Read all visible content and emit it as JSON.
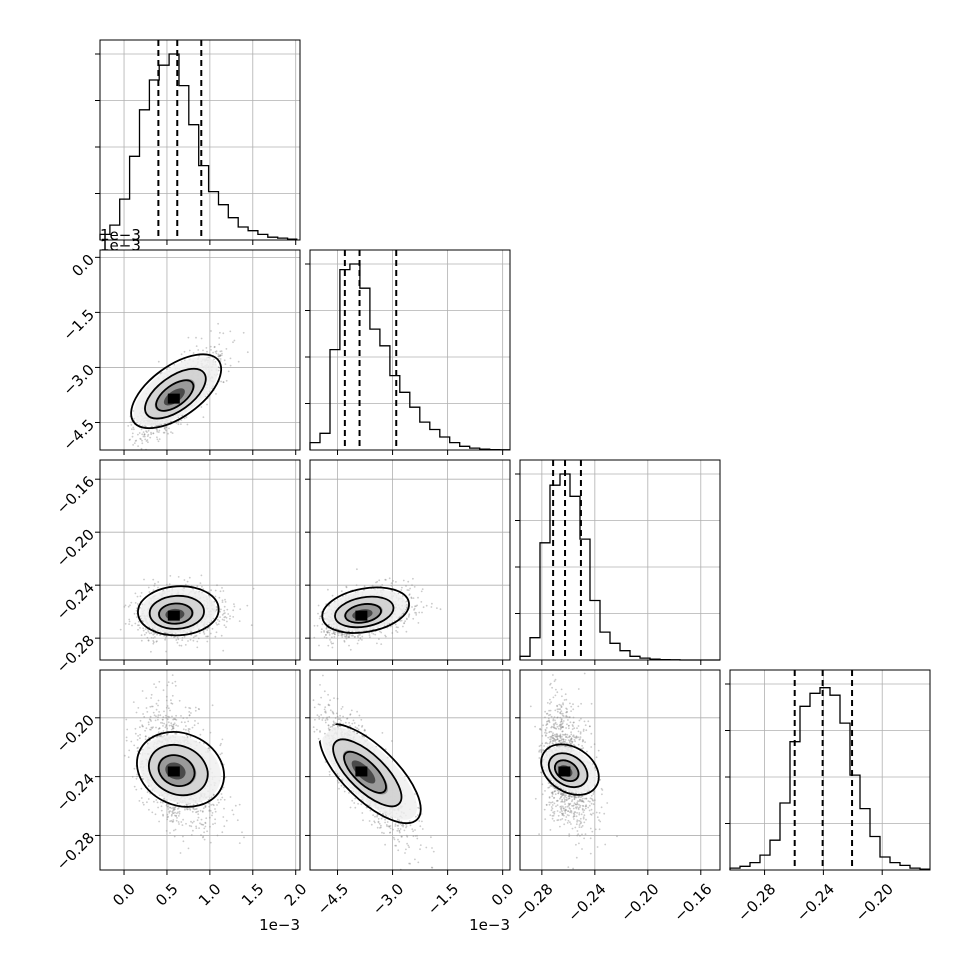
{
  "chart_data": {
    "type": "corner",
    "n_params": 4,
    "colors": {
      "frame": "#000000",
      "grid": "#b0b0b0",
      "hist": "#000000",
      "points": "#8c8c8c",
      "contour": "#000000"
    },
    "params": [
      {
        "range": [
          -0.00028,
          0.00205
        ],
        "ticks": [
          0.0,
          0.0005,
          0.001,
          0.0015,
          0.002
        ],
        "tick_labels": [
          "0.0",
          "0.5",
          "1.0",
          "1.5",
          "2.0"
        ],
        "offset_label": "1e−3",
        "quantiles": [
          0.0004,
          0.00062,
          0.0009
        ],
        "center": 0.00058,
        "spread": 0.0002
      },
      {
        "range": [
          -0.00525,
          0.0002
        ],
        "ticks": [
          -0.0045,
          -0.003,
          -0.0015,
          0.0
        ],
        "tick_labels": [
          "−4.5",
          "−3.0",
          "−1.5",
          "0.0"
        ],
        "offset_label": "1e−3",
        "quantiles": [
          -0.0043,
          -0.0039,
          -0.0029
        ],
        "center": -0.00385,
        "spread": 0.0005
      },
      {
        "range": [
          -0.2965,
          -0.1455
        ],
        "ticks": [
          -0.28,
          -0.24,
          -0.2,
          -0.16
        ],
        "tick_labels": [
          "−0.28",
          "−0.24",
          "−0.20",
          "−0.16"
        ],
        "offset_label": "",
        "quantiles": [
          -0.2715,
          -0.2625,
          -0.2505
        ],
        "center": -0.263,
        "spread": 0.008
      },
      {
        "range": [
          -0.3035,
          -0.1675
        ],
        "ticks": [
          -0.28,
          -0.24,
          -0.2
        ],
        "tick_labels": [
          "−0.28",
          "−0.24",
          "−0.20"
        ],
        "offset_label": "",
        "quantiles": [
          -0.2595,
          -0.2405,
          -0.2205
        ],
        "center": -0.2365,
        "spread": 0.018
      }
    ],
    "histograms": [
      {
        "bin_start": -0.00028,
        "bin_width": 0.000115,
        "counts": [
          0.03,
          0.08,
          0.22,
          0.45,
          0.7,
          0.86,
          0.94,
          1.0,
          0.83,
          0.62,
          0.4,
          0.26,
          0.19,
          0.12,
          0.07,
          0.05,
          0.03,
          0.015,
          0.01,
          0.005
        ]
      },
      {
        "bin_start": -0.00525,
        "bin_width": 0.000272,
        "counts": [
          0.04,
          0.09,
          0.54,
          0.97,
          1.0,
          0.87,
          0.65,
          0.56,
          0.4,
          0.31,
          0.23,
          0.15,
          0.11,
          0.07,
          0.04,
          0.02,
          0.01,
          0.005,
          0.002,
          0.001
        ]
      },
      {
        "bin_start": -0.2965,
        "bin_width": 0.00755,
        "counts": [
          0.02,
          0.12,
          0.63,
          0.94,
          1.0,
          0.88,
          0.65,
          0.32,
          0.15,
          0.09,
          0.05,
          0.02,
          0.01,
          0.005,
          0.002,
          0.001,
          0.0,
          0.0,
          0.0,
          0.0
        ]
      },
      {
        "bin_start": -0.3035,
        "bin_width": 0.0068,
        "counts": [
          0.01,
          0.02,
          0.04,
          0.08,
          0.16,
          0.36,
          0.69,
          0.88,
          0.95,
          0.98,
          0.94,
          0.79,
          0.51,
          0.33,
          0.18,
          0.07,
          0.04,
          0.025,
          0.01,
          0.005
        ]
      }
    ],
    "pairs": [
      {
        "row": 1,
        "col": 0,
        "correlation": 0.78
      },
      {
        "row": 2,
        "col": 0,
        "correlation": 0.1
      },
      {
        "row": 2,
        "col": 1,
        "correlation": 0.35
      },
      {
        "row": 3,
        "col": 0,
        "correlation": -0.32
      },
      {
        "row": 3,
        "col": 1,
        "correlation": -0.8
      },
      {
        "row": 3,
        "col": 2,
        "correlation": -0.3
      }
    ],
    "grid": true,
    "title": "",
    "xlabel": "",
    "ylabel": ""
  }
}
